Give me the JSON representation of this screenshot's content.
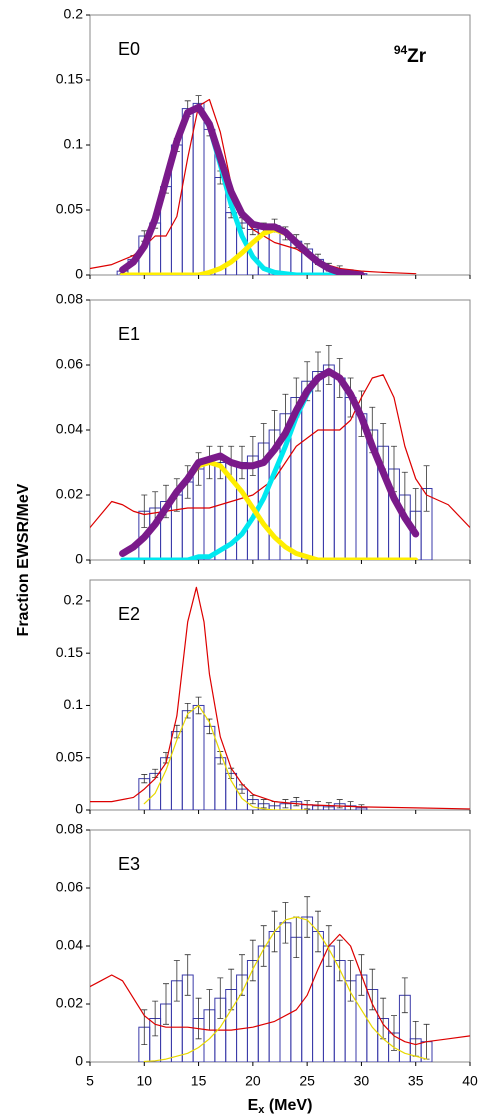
{
  "y_label": "Fraction EWSR/MeV",
  "x_label": {
    "main": "E",
    "sub": "x",
    "unit": " (MeV)"
  },
  "chart_data": [
    {
      "type": "line",
      "label": "E0",
      "nucleus": {
        "sup": "94",
        "text": "Zr"
      },
      "xlim": [
        5,
        40
      ],
      "xticks": [
        5,
        10,
        15,
        20,
        25,
        30,
        35,
        40
      ],
      "show_xtick_labels": false,
      "ylim": [
        0,
        0.2
      ],
      "yticks": [
        0,
        0.05,
        0.1,
        0.15,
        0.2
      ],
      "series": [
        {
          "style": "bars",
          "color": "#3a3aa8",
          "x": [
            8,
            9,
            10,
            11,
            12,
            13,
            14,
            15,
            16,
            17,
            18,
            19,
            20,
            21,
            22,
            23,
            24,
            25,
            26,
            27,
            28,
            29,
            30
          ],
          "values": [
            0.003,
            0.012,
            0.03,
            0.04,
            0.068,
            0.1,
            0.128,
            0.132,
            0.112,
            0.075,
            0.048,
            0.04,
            0.035,
            0.036,
            0.038,
            0.032,
            0.026,
            0.02,
            0.012,
            0.006,
            0.004,
            0.002,
            0.001
          ],
          "errors": [
            0.002,
            0.003,
            0.004,
            0.004,
            0.005,
            0.005,
            0.006,
            0.006,
            0.005,
            0.005,
            0.004,
            0.004,
            0.004,
            0.004,
            0.005,
            0.005,
            0.005,
            0.004,
            0.004,
            0.003,
            0.003,
            0.002,
            0.002
          ]
        },
        {
          "style": "line",
          "color": "#dd0000",
          "x": [
            5,
            7,
            9,
            10,
            11,
            12,
            13,
            14,
            15,
            16,
            17,
            18,
            19,
            20,
            21,
            22,
            24,
            26,
            28,
            30,
            32,
            35
          ],
          "values": [
            0.005,
            0.008,
            0.015,
            0.022,
            0.03,
            0.03,
            0.045,
            0.09,
            0.13,
            0.135,
            0.11,
            0.07,
            0.045,
            0.035,
            0.03,
            0.025,
            0.02,
            0.01,
            0.005,
            0.003,
            0.002,
            0.001
          ]
        },
        {
          "style": "thick",
          "color": "#00e8f0",
          "x": [
            8,
            9,
            10,
            11,
            12,
            13,
            14,
            15,
            16,
            17,
            18,
            19,
            20,
            21,
            22,
            23,
            24,
            25,
            26,
            27,
            28,
            29,
            30
          ],
          "values": [
            0.004,
            0.01,
            0.022,
            0.043,
            0.073,
            0.103,
            0.125,
            0.129,
            0.114,
            0.085,
            0.054,
            0.03,
            0.014,
            0.005,
            0.002,
            0.001,
            0,
            0,
            0,
            0,
            0,
            0,
            0
          ]
        },
        {
          "style": "thick",
          "color": "#ffee00",
          "x": [
            8,
            9,
            10,
            11,
            12,
            13,
            14,
            15,
            16,
            17,
            18,
            19,
            20,
            21,
            22,
            23,
            24,
            25,
            26,
            27,
            28,
            29,
            30
          ],
          "values": [
            0,
            0,
            0,
            0,
            0,
            0,
            0,
            0,
            0.002,
            0.005,
            0.01,
            0.017,
            0.025,
            0.032,
            0.035,
            0.032,
            0.025,
            0.017,
            0.01,
            0.005,
            0.002,
            0.001,
            0
          ]
        },
        {
          "style": "heavy",
          "color": "#7a1a8a",
          "x": [
            8,
            9,
            10,
            11,
            12,
            13,
            14,
            15,
            16,
            17,
            18,
            19,
            20,
            21,
            22,
            23,
            24,
            25,
            26,
            27,
            28,
            29,
            30
          ],
          "values": [
            0.004,
            0.01,
            0.022,
            0.043,
            0.073,
            0.103,
            0.125,
            0.129,
            0.116,
            0.09,
            0.064,
            0.047,
            0.039,
            0.037,
            0.037,
            0.033,
            0.025,
            0.017,
            0.01,
            0.005,
            0.002,
            0.001,
            0
          ]
        }
      ]
    },
    {
      "type": "line",
      "label": "E1",
      "xlim": [
        5,
        40
      ],
      "xticks": [
        5,
        10,
        15,
        20,
        25,
        30,
        35,
        40
      ],
      "show_xtick_labels": false,
      "ylim": [
        0,
        0.08
      ],
      "yticks": [
        0,
        0.02,
        0.04,
        0.06,
        0.08
      ],
      "series": [
        {
          "style": "bars",
          "color": "#3a3aa8",
          "x": [
            10,
            11,
            12,
            13,
            14,
            15,
            16,
            17,
            18,
            19,
            20,
            21,
            22,
            23,
            24,
            25,
            26,
            27,
            28,
            29,
            30,
            31,
            32,
            33,
            34,
            35,
            36
          ],
          "values": [
            0.015,
            0.016,
            0.018,
            0.02,
            0.024,
            0.028,
            0.03,
            0.03,
            0.03,
            0.03,
            0.032,
            0.036,
            0.04,
            0.045,
            0.05,
            0.055,
            0.058,
            0.06,
            0.056,
            0.05,
            0.045,
            0.04,
            0.035,
            0.028,
            0.02,
            0.015,
            0.022
          ],
          "errors": [
            0.005,
            0.005,
            0.005,
            0.005,
            0.005,
            0.005,
            0.005,
            0.005,
            0.005,
            0.005,
            0.006,
            0.006,
            0.006,
            0.006,
            0.006,
            0.006,
            0.006,
            0.006,
            0.006,
            0.006,
            0.007,
            0.007,
            0.007,
            0.007,
            0.007,
            0.007,
            0.007
          ]
        },
        {
          "style": "line",
          "color": "#dd0000",
          "x": [
            5,
            6,
            7,
            8,
            9,
            10,
            12,
            14,
            16,
            18,
            20,
            22,
            24,
            26,
            28,
            29,
            30,
            31,
            32,
            33,
            34,
            35,
            36,
            38,
            40
          ],
          "values": [
            0.01,
            0.014,
            0.018,
            0.017,
            0.015,
            0.014,
            0.015,
            0.016,
            0.016,
            0.018,
            0.02,
            0.025,
            0.035,
            0.04,
            0.04,
            0.043,
            0.05,
            0.056,
            0.057,
            0.05,
            0.035,
            0.025,
            0.02,
            0.017,
            0.01
          ]
        },
        {
          "style": "thick",
          "color": "#00e8f0",
          "x": [
            8,
            9,
            10,
            11,
            12,
            13,
            14,
            15,
            16,
            17,
            18,
            19,
            20,
            21,
            22,
            23,
            24,
            25,
            26,
            27,
            28,
            29,
            30,
            31,
            32,
            33,
            34,
            35
          ],
          "values": [
            0,
            0,
            0,
            0,
            0,
            0,
            0,
            0.001,
            0.001,
            0.003,
            0.005,
            0.008,
            0.013,
            0.019,
            0.027,
            0.035,
            0.044,
            0.051,
            0.056,
            0.058,
            0.056,
            0.051,
            0.044,
            0.035,
            0.027,
            0.019,
            0.013,
            0.008
          ]
        },
        {
          "style": "thick",
          "color": "#ffee00",
          "x": [
            8,
            9,
            10,
            11,
            12,
            13,
            14,
            15,
            16,
            17,
            18,
            19,
            20,
            21,
            22,
            23,
            24,
            25,
            26,
            27,
            28,
            29,
            30,
            31,
            32,
            33,
            34,
            35
          ],
          "values": [
            0.002,
            0.004,
            0.007,
            0.011,
            0.016,
            0.021,
            0.025,
            0.029,
            0.03,
            0.029,
            0.025,
            0.021,
            0.016,
            0.011,
            0.007,
            0.004,
            0.002,
            0.001,
            0,
            0,
            0,
            0,
            0,
            0,
            0,
            0,
            0,
            0
          ]
        },
        {
          "style": "heavy",
          "color": "#7a1a8a",
          "x": [
            8,
            9,
            10,
            11,
            12,
            13,
            14,
            15,
            16,
            17,
            18,
            19,
            20,
            21,
            22,
            23,
            24,
            25,
            26,
            27,
            28,
            29,
            30,
            31,
            32,
            33,
            34,
            35
          ],
          "values": [
            0.002,
            0.004,
            0.007,
            0.011,
            0.016,
            0.021,
            0.025,
            0.03,
            0.031,
            0.032,
            0.03,
            0.029,
            0.029,
            0.03,
            0.034,
            0.039,
            0.046,
            0.052,
            0.056,
            0.058,
            0.056,
            0.051,
            0.044,
            0.035,
            0.027,
            0.019,
            0.013,
            0.008
          ]
        }
      ]
    },
    {
      "type": "line",
      "label": "E2",
      "xlim": [
        5,
        40
      ],
      "xticks": [
        5,
        10,
        15,
        20,
        25,
        30,
        35,
        40
      ],
      "show_xtick_labels": false,
      "ylim": [
        0,
        0.22
      ],
      "yticks": [
        0,
        0.05,
        0.1,
        0.15,
        0.2
      ],
      "series": [
        {
          "style": "bars",
          "color": "#3a3aa8",
          "x": [
            10,
            11,
            12,
            13,
            14,
            15,
            16,
            17,
            18,
            19,
            20,
            21,
            22,
            23,
            24,
            25,
            26,
            27,
            28,
            29,
            30
          ],
          "values": [
            0.03,
            0.035,
            0.05,
            0.075,
            0.095,
            0.1,
            0.08,
            0.05,
            0.035,
            0.02,
            0.01,
            0.006,
            0.004,
            0.006,
            0.008,
            0.005,
            0.004,
            0.003,
            0.006,
            0.004,
            0.002
          ],
          "errors": [
            0.004,
            0.004,
            0.005,
            0.006,
            0.007,
            0.008,
            0.007,
            0.006,
            0.005,
            0.004,
            0.004,
            0.004,
            0.004,
            0.004,
            0.004,
            0.004,
            0.004,
            0.004,
            0.004,
            0.004,
            0.003
          ]
        },
        {
          "style": "line",
          "color": "#dd0000",
          "x": [
            5,
            7,
            9,
            10,
            11,
            12,
            13,
            14,
            14.8,
            15.5,
            16,
            17,
            18,
            19,
            20,
            22,
            25,
            30,
            35,
            40
          ],
          "values": [
            0.008,
            0.008,
            0.012,
            0.02,
            0.03,
            0.045,
            0.09,
            0.18,
            0.213,
            0.18,
            0.13,
            0.07,
            0.04,
            0.025,
            0.015,
            0.008,
            0.005,
            0.003,
            0.002,
            0.001
          ]
        },
        {
          "style": "line",
          "color": "#e8d800",
          "x": [
            10,
            11,
            12,
            13,
            14,
            15,
            16,
            17,
            18,
            19,
            20,
            21,
            22,
            23,
            24,
            25
          ],
          "values": [
            0.006,
            0.016,
            0.038,
            0.067,
            0.092,
            0.1,
            0.084,
            0.055,
            0.028,
            0.011,
            0.003,
            0.001,
            0,
            0,
            0,
            0
          ]
        }
      ]
    },
    {
      "type": "line",
      "label": "E3",
      "xlim": [
        5,
        40
      ],
      "xticks": [
        5,
        10,
        15,
        20,
        25,
        30,
        35,
        40
      ],
      "show_xtick_labels": true,
      "ylim": [
        0,
        0.08
      ],
      "yticks": [
        0,
        0.02,
        0.04,
        0.06,
        0.08
      ],
      "series": [
        {
          "style": "bars",
          "color": "#3a3aa8",
          "x": [
            10,
            11,
            12,
            13,
            14,
            15,
            16,
            17,
            18,
            19,
            20,
            21,
            22,
            23,
            24,
            25,
            26,
            27,
            28,
            29,
            30,
            31,
            32,
            33,
            34,
            35,
            36
          ],
          "values": [
            0.012,
            0.015,
            0.02,
            0.028,
            0.03,
            0.015,
            0.018,
            0.022,
            0.025,
            0.03,
            0.035,
            0.04,
            0.045,
            0.048,
            0.043,
            0.05,
            0.045,
            0.04,
            0.035,
            0.028,
            0.03,
            0.025,
            0.015,
            0.01,
            0.023,
            0.008,
            0.007
          ],
          "errors": [
            0.006,
            0.006,
            0.007,
            0.007,
            0.007,
            0.007,
            0.007,
            0.007,
            0.007,
            0.007,
            0.007,
            0.007,
            0.007,
            0.007,
            0.007,
            0.007,
            0.007,
            0.007,
            0.007,
            0.007,
            0.007,
            0.007,
            0.007,
            0.006,
            0.006,
            0.006,
            0.006
          ]
        },
        {
          "style": "line",
          "color": "#dd0000",
          "x": [
            5,
            6,
            7,
            8,
            9,
            10,
            11,
            12,
            14,
            16,
            18,
            20,
            22,
            24,
            25,
            26,
            27,
            28,
            29,
            30,
            31,
            32,
            33,
            34,
            35,
            36,
            38,
            40
          ],
          "values": [
            0.026,
            0.028,
            0.03,
            0.028,
            0.022,
            0.016,
            0.013,
            0.012,
            0.012,
            0.011,
            0.011,
            0.012,
            0.014,
            0.018,
            0.023,
            0.032,
            0.04,
            0.044,
            0.04,
            0.03,
            0.02,
            0.013,
            0.009,
            0.007,
            0.006,
            0.007,
            0.008,
            0.009
          ]
        },
        {
          "style": "line",
          "color": "#e8d800",
          "x": [
            10,
            11,
            12,
            13,
            14,
            15,
            16,
            17,
            18,
            19,
            20,
            21,
            22,
            23,
            24,
            25,
            26,
            27,
            28,
            29,
            30,
            31,
            32,
            33,
            34,
            35,
            36
          ],
          "values": [
            0.0002,
            0.0004,
            0.001,
            0.002,
            0.003,
            0.005,
            0.008,
            0.012,
            0.018,
            0.024,
            0.032,
            0.039,
            0.045,
            0.049,
            0.05,
            0.049,
            0.045,
            0.039,
            0.032,
            0.024,
            0.018,
            0.012,
            0.008,
            0.005,
            0.003,
            0.002,
            0.001
          ]
        }
      ]
    }
  ]
}
